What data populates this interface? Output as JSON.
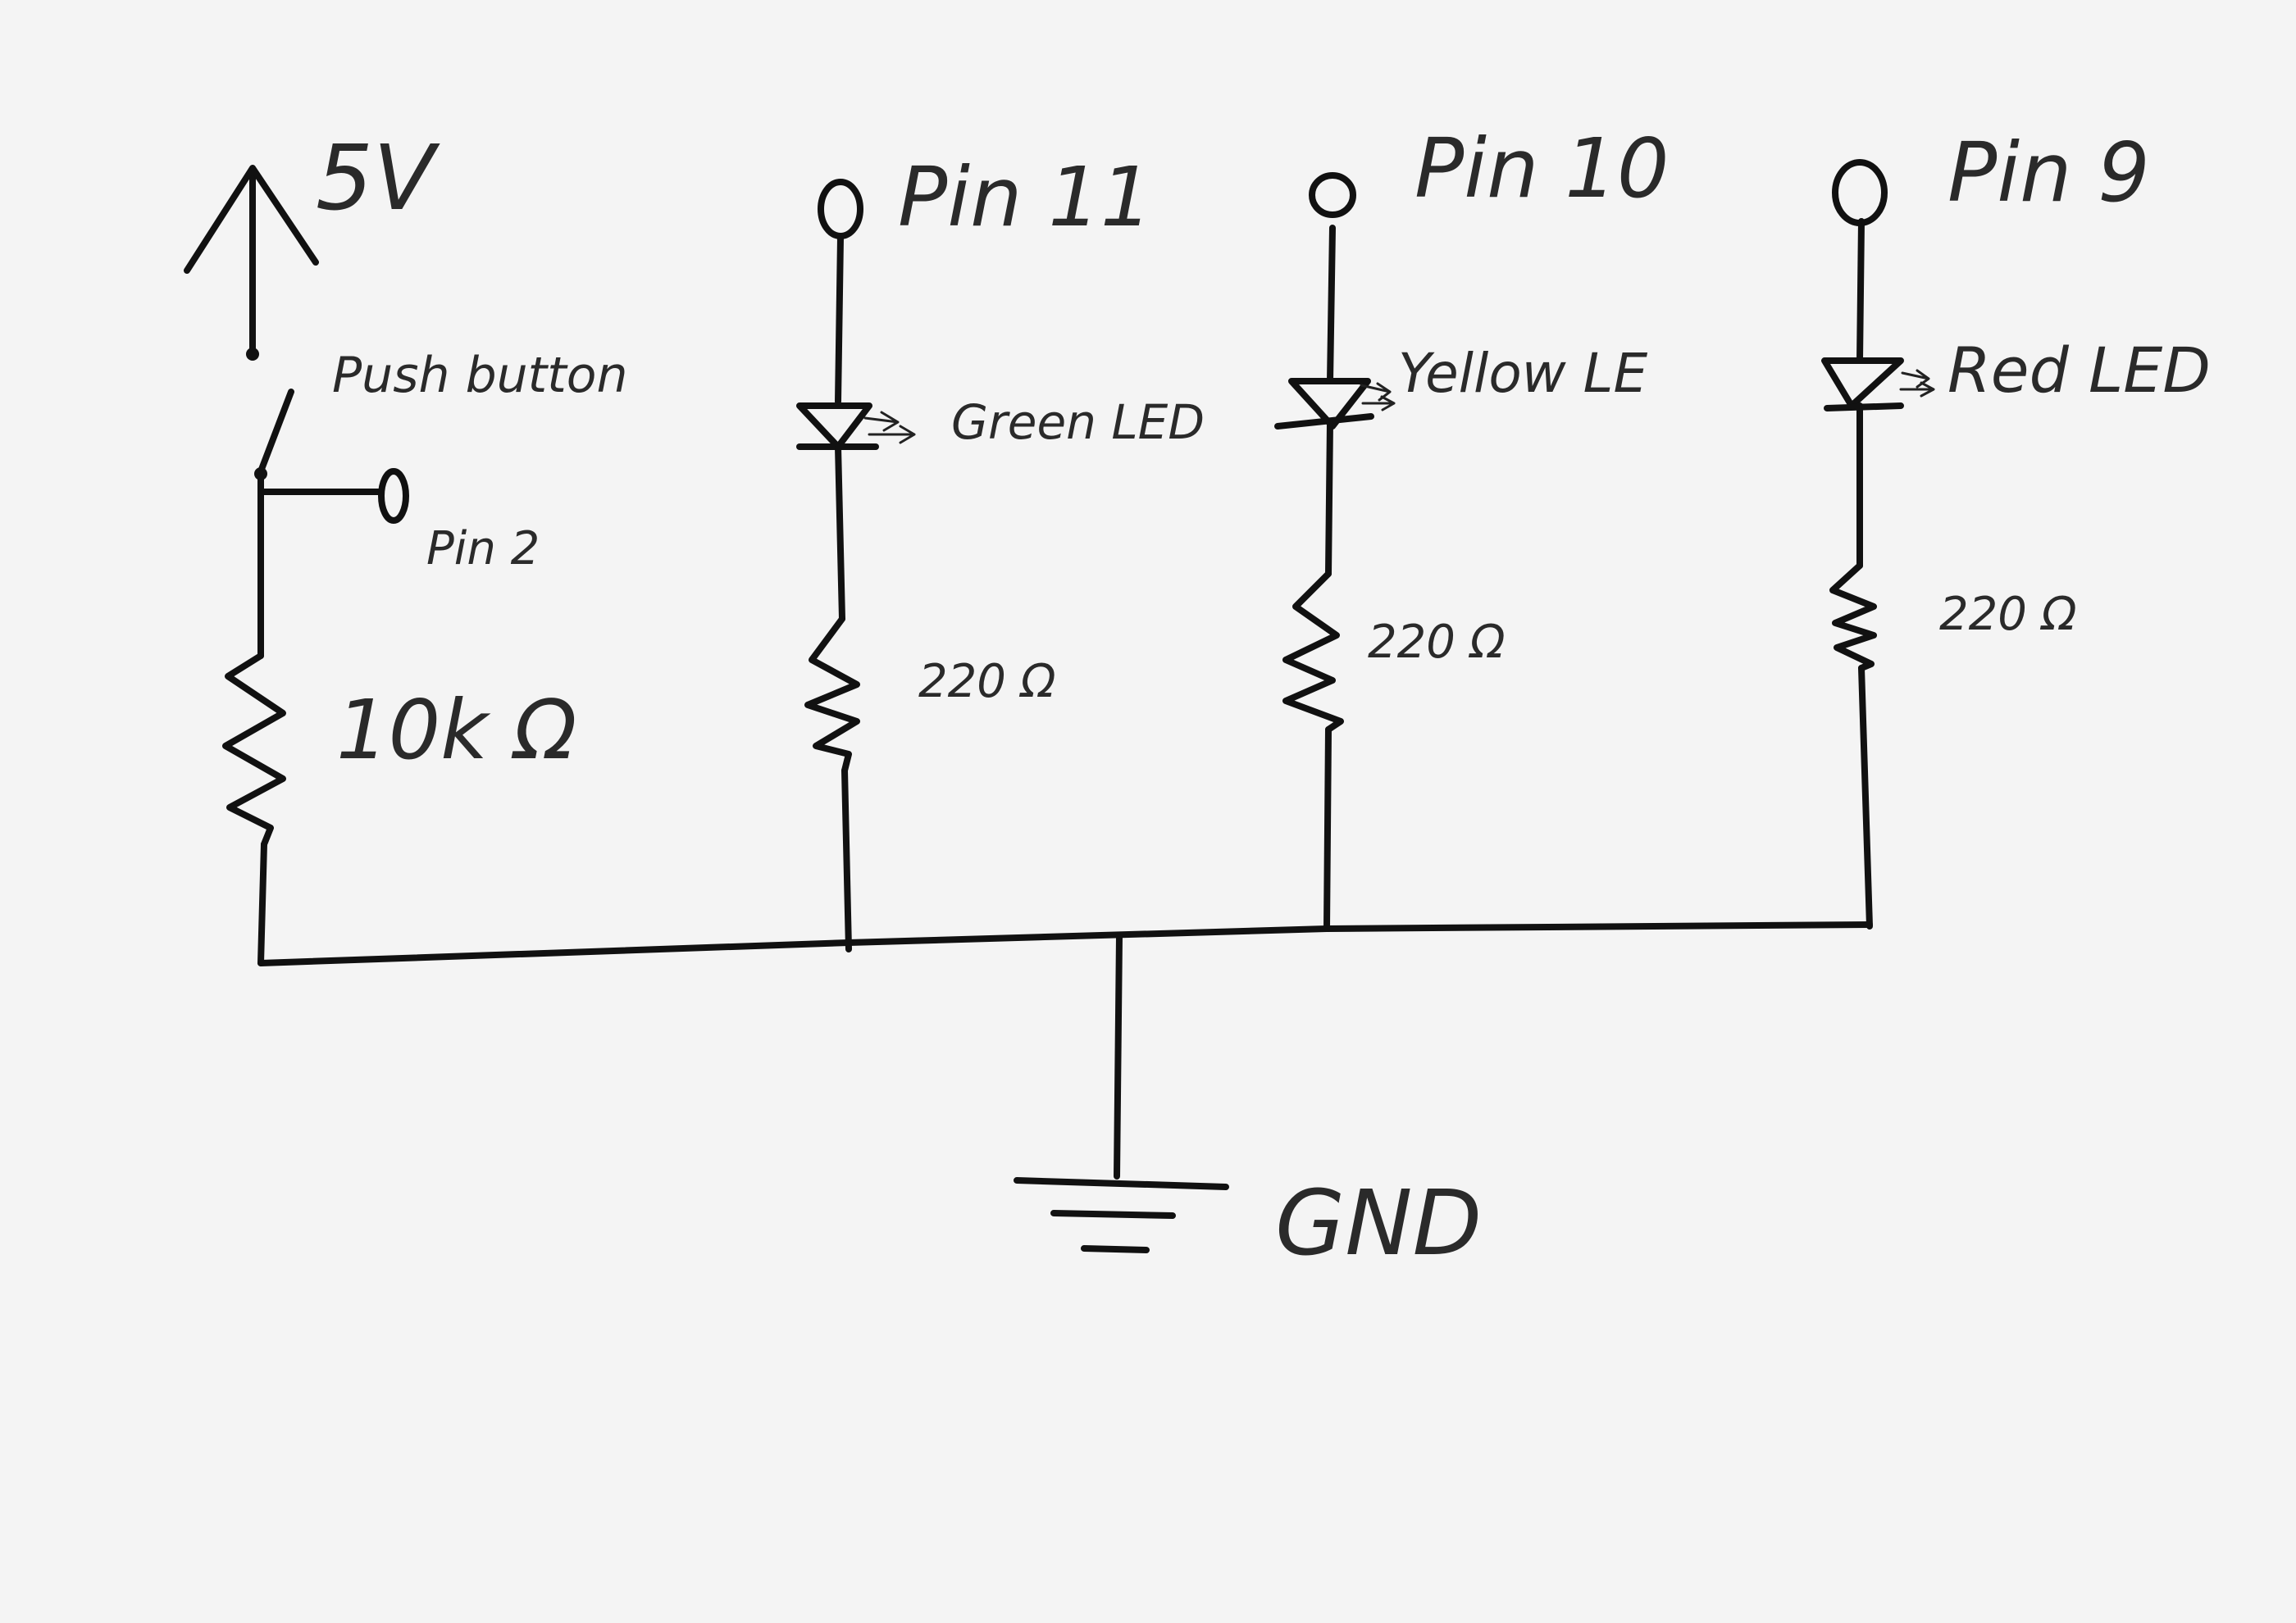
{
  "labels": {
    "supply": "5V",
    "pushbutton": "Push button",
    "pin2": "Pin 2",
    "pulldown": "10k Ω",
    "pin11": "Pin 11",
    "green_led": "Green LED",
    "r_green": "220 Ω",
    "pin10": "Pin 10",
    "yellow_led": "Yellow LE",
    "r_yellow": "220 Ω",
    "pin9": "Pin 9",
    "red_led": "Red LED",
    "r_red": "220 Ω",
    "gnd": "GND"
  },
  "colors": {
    "ink": "#111111",
    "paper": "#f4f4f4"
  }
}
